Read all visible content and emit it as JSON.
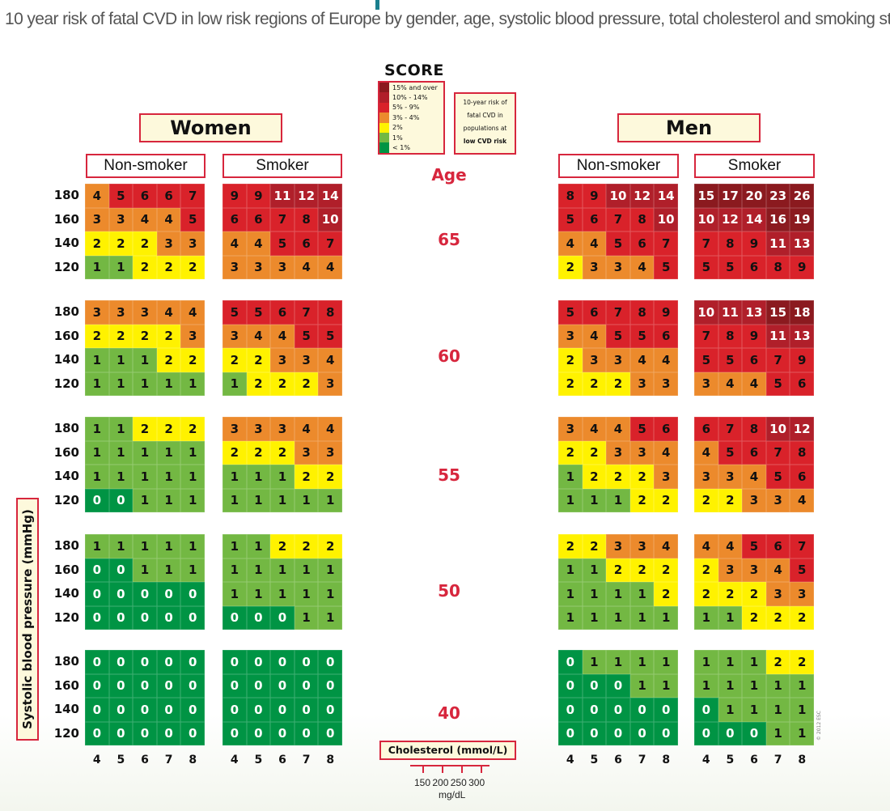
{
  "title": "10 year risk of fatal CVD in low risk regions of Europe by gender, age, systolic blood pressure, total cholesterol and smoking status",
  "logo": "SCORE",
  "legend": {
    "items": [
      {
        "label": "15% and over",
        "color": "#8b1a1f"
      },
      {
        "label": "10% - 14%",
        "color": "#b01f2a"
      },
      {
        "label": "5% - 9%",
        "color": "#d9222a"
      },
      {
        "label": "3% - 4%",
        "color": "#ec8a2c"
      },
      {
        "label": "2%",
        "color": "#fff200"
      },
      {
        "label": "1%",
        "color": "#73b843"
      },
      {
        "label": "< 1%",
        "color": "#009444"
      }
    ],
    "note_lines": [
      "10-year risk of",
      "fatal CVD in",
      "populations at",
      "low CVD risk"
    ]
  },
  "age_label": "Age",
  "ylabel": "Systolic blood pressure (mmHg)",
  "xlabel": "Cholesterol (mmol/L)",
  "mgdl_ticks": [
    "150",
    "200",
    "250",
    "300"
  ],
  "mgdl_unit": "mg/dL",
  "copyright": "© 2012 ESC",
  "chart_data": {
    "type": "heatmap",
    "title": "10 year risk of fatal CVD in low risk regions of Europe by gender, age, systolic blood pressure, total cholesterol and smoking status",
    "xlabel": "Cholesterol (mmol/L)",
    "ylabel": "Systolic blood pressure (mmHg)",
    "cholesterol": [
      "4",
      "5",
      "6",
      "7",
      "8"
    ],
    "sbp": [
      "180",
      "160",
      "140",
      "120"
    ],
    "ages": [
      "65",
      "60",
      "55",
      "50",
      "40"
    ],
    "genders": [
      {
        "label": "Women",
        "groups": [
          {
            "label": "Non-smoker",
            "values": [
              [
                [
                  4,
                  5,
                  6,
                  6,
                  7
                ],
                [
                  3,
                  3,
                  4,
                  4,
                  5
                ],
                [
                  2,
                  2,
                  2,
                  3,
                  3
                ],
                [
                  1,
                  1,
                  2,
                  2,
                  2
                ]
              ],
              [
                [
                  3,
                  3,
                  3,
                  4,
                  4
                ],
                [
                  2,
                  2,
                  2,
                  2,
                  3
                ],
                [
                  1,
                  1,
                  1,
                  2,
                  2
                ],
                [
                  1,
                  1,
                  1,
                  1,
                  1
                ]
              ],
              [
                [
                  1,
                  1,
                  2,
                  2,
                  2
                ],
                [
                  1,
                  1,
                  1,
                  1,
                  1
                ],
                [
                  1,
                  1,
                  1,
                  1,
                  1
                ],
                [
                  0,
                  0,
                  1,
                  1,
                  1
                ]
              ],
              [
                [
                  1,
                  1,
                  1,
                  1,
                  1
                ],
                [
                  0,
                  0,
                  1,
                  1,
                  1
                ],
                [
                  0,
                  0,
                  0,
                  0,
                  0
                ],
                [
                  0,
                  0,
                  0,
                  0,
                  0
                ]
              ],
              [
                [
                  0,
                  0,
                  0,
                  0,
                  0
                ],
                [
                  0,
                  0,
                  0,
                  0,
                  0
                ],
                [
                  0,
                  0,
                  0,
                  0,
                  0
                ],
                [
                  0,
                  0,
                  0,
                  0,
                  0
                ]
              ]
            ]
          },
          {
            "label": "Smoker",
            "values": [
              [
                [
                  9,
                  9,
                  11,
                  12,
                  14
                ],
                [
                  6,
                  6,
                  7,
                  8,
                  10
                ],
                [
                  4,
                  4,
                  5,
                  6,
                  7
                ],
                [
                  3,
                  3,
                  3,
                  4,
                  4
                ]
              ],
              [
                [
                  5,
                  5,
                  6,
                  7,
                  8
                ],
                [
                  3,
                  4,
                  4,
                  5,
                  5
                ],
                [
                  2,
                  2,
                  3,
                  3,
                  4
                ],
                [
                  1,
                  2,
                  2,
                  2,
                  3
                ]
              ],
              [
                [
                  3,
                  3,
                  3,
                  4,
                  4
                ],
                [
                  2,
                  2,
                  2,
                  3,
                  3
                ],
                [
                  1,
                  1,
                  1,
                  2,
                  2
                ],
                [
                  1,
                  1,
                  1,
                  1,
                  1
                ]
              ],
              [
                [
                  1,
                  1,
                  2,
                  2,
                  2
                ],
                [
                  1,
                  1,
                  1,
                  1,
                  1
                ],
                [
                  1,
                  1,
                  1,
                  1,
                  1
                ],
                [
                  0,
                  0,
                  0,
                  1,
                  1
                ]
              ],
              [
                [
                  0,
                  0,
                  0,
                  0,
                  0
                ],
                [
                  0,
                  0,
                  0,
                  0,
                  0
                ],
                [
                  0,
                  0,
                  0,
                  0,
                  0
                ],
                [
                  0,
                  0,
                  0,
                  0,
                  0
                ]
              ]
            ]
          }
        ]
      },
      {
        "label": "Men",
        "groups": [
          {
            "label": "Non-smoker",
            "values": [
              [
                [
                  8,
                  9,
                  10,
                  12,
                  14
                ],
                [
                  5,
                  6,
                  7,
                  8,
                  10
                ],
                [
                  4,
                  4,
                  5,
                  6,
                  7
                ],
                [
                  2,
                  3,
                  3,
                  4,
                  5
                ]
              ],
              [
                [
                  5,
                  6,
                  7,
                  8,
                  9
                ],
                [
                  3,
                  4,
                  5,
                  5,
                  6
                ],
                [
                  2,
                  3,
                  3,
                  4,
                  4
                ],
                [
                  2,
                  2,
                  2,
                  3,
                  3
                ]
              ],
              [
                [
                  3,
                  4,
                  4,
                  5,
                  6
                ],
                [
                  2,
                  2,
                  3,
                  3,
                  4
                ],
                [
                  1,
                  2,
                  2,
                  2,
                  3
                ],
                [
                  1,
                  1,
                  1,
                  2,
                  2
                ]
              ],
              [
                [
                  2,
                  2,
                  3,
                  3,
                  4
                ],
                [
                  1,
                  1,
                  2,
                  2,
                  2
                ],
                [
                  1,
                  1,
                  1,
                  1,
                  2
                ],
                [
                  1,
                  1,
                  1,
                  1,
                  1
                ]
              ],
              [
                [
                  0,
                  1,
                  1,
                  1,
                  1
                ],
                [
                  0,
                  0,
                  0,
                  1,
                  1
                ],
                [
                  0,
                  0,
                  0,
                  0,
                  0
                ],
                [
                  0,
                  0,
                  0,
                  0,
                  0
                ]
              ]
            ]
          },
          {
            "label": "Smoker",
            "values": [
              [
                [
                  15,
                  17,
                  20,
                  23,
                  26
                ],
                [
                  10,
                  12,
                  14,
                  16,
                  19
                ],
                [
                  7,
                  8,
                  9,
                  11,
                  13
                ],
                [
                  5,
                  5,
                  6,
                  8,
                  9
                ]
              ],
              [
                [
                  10,
                  11,
                  13,
                  15,
                  18
                ],
                [
                  7,
                  8,
                  9,
                  11,
                  13
                ],
                [
                  5,
                  5,
                  6,
                  7,
                  9
                ],
                [
                  3,
                  4,
                  4,
                  5,
                  6
                ]
              ],
              [
                [
                  6,
                  7,
                  8,
                  10,
                  12
                ],
                [
                  4,
                  5,
                  6,
                  7,
                  8
                ],
                [
                  3,
                  3,
                  4,
                  5,
                  6
                ],
                [
                  2,
                  2,
                  3,
                  3,
                  4
                ]
              ],
              [
                [
                  4,
                  4,
                  5,
                  6,
                  7
                ],
                [
                  2,
                  3,
                  3,
                  4,
                  5
                ],
                [
                  2,
                  2,
                  2,
                  3,
                  3
                ],
                [
                  1,
                  1,
                  2,
                  2,
                  2
                ]
              ],
              [
                [
                  1,
                  1,
                  1,
                  2,
                  2
                ],
                [
                  1,
                  1,
                  1,
                  1,
                  1
                ],
                [
                  0,
                  1,
                  1,
                  1,
                  1
                ],
                [
                  0,
                  0,
                  0,
                  1,
                  1
                ]
              ]
            ]
          }
        ]
      }
    ]
  }
}
